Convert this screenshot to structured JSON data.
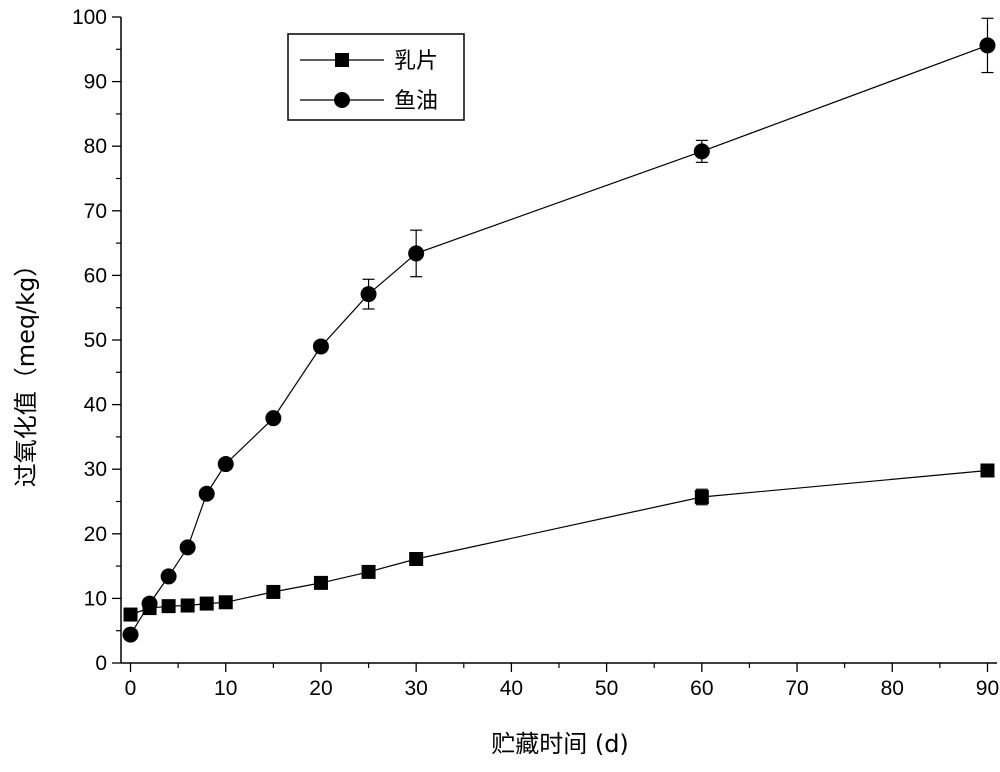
{
  "chart_data": {
    "type": "line",
    "xlabel": "贮藏时间 (d)",
    "ylabel": "过氧化值（meq/kg）",
    "xlim": [
      -1,
      91
    ],
    "ylim": [
      0,
      100
    ],
    "x_ticks": [
      0,
      10,
      20,
      30,
      40,
      50,
      60,
      70,
      80,
      90
    ],
    "y_ticks": [
      0,
      10,
      20,
      30,
      40,
      50,
      60,
      70,
      80,
      90,
      100
    ],
    "grid": false,
    "legend_position": "top-left",
    "series": [
      {
        "name": "乳片",
        "marker": "square",
        "x": [
          0,
          2,
          4,
          6,
          8,
          10,
          15,
          20,
          25,
          30,
          60,
          90
        ],
        "y": [
          7.5,
          8.5,
          8.8,
          8.9,
          9.2,
          9.4,
          11.0,
          12.4,
          14.1,
          16.1,
          25.7,
          29.8
        ],
        "err": [
          0,
          0,
          0,
          0,
          0,
          0,
          0,
          0,
          0,
          0,
          1.2,
          0
        ]
      },
      {
        "name": "鱼油",
        "marker": "circle",
        "x": [
          0,
          2,
          4,
          6,
          8,
          10,
          15,
          20,
          25,
          30,
          60,
          90
        ],
        "y": [
          4.4,
          9.2,
          13.4,
          17.9,
          26.2,
          30.8,
          37.9,
          49.0,
          57.1,
          63.4,
          79.2,
          95.6
        ],
        "err": [
          0,
          0,
          0,
          0,
          0,
          0,
          0,
          0.8,
          2.3,
          3.6,
          1.7,
          4.2
        ]
      }
    ]
  }
}
